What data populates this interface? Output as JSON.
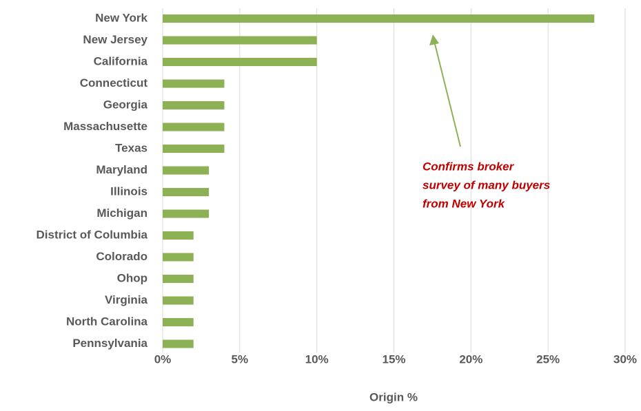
{
  "chart_data": {
    "type": "bar",
    "orientation": "horizontal",
    "categories": [
      "New York",
      "New Jersey",
      "California",
      "Connecticut",
      "Georgia",
      "Massachusette",
      "Texas",
      "Maryland",
      "Illinois",
      "Michigan",
      "District of Columbia",
      "Colorado",
      "Ohop",
      "Virginia",
      "North Carolina",
      "Pennsylvania"
    ],
    "values": [
      28,
      10,
      10,
      4,
      4,
      4,
      4,
      3,
      3,
      3,
      2,
      2,
      2,
      2,
      2,
      2
    ],
    "color": "#8db255",
    "xlim": [
      0,
      30
    ],
    "xticks": [
      {
        "value": 0,
        "label": "0%"
      },
      {
        "value": 5,
        "label": "5%"
      },
      {
        "value": 10,
        "label": "10%"
      },
      {
        "value": 15,
        "label": "15%"
      },
      {
        "value": 20,
        "label": "20%"
      },
      {
        "value": 25,
        "label": "25%"
      },
      {
        "value": 30,
        "label": "30%"
      }
    ],
    "x_label": "Origin %",
    "grid": true,
    "annotation": {
      "lines": [
        "Confirms broker",
        "survey of many buyers",
        "from New York"
      ]
    }
  }
}
